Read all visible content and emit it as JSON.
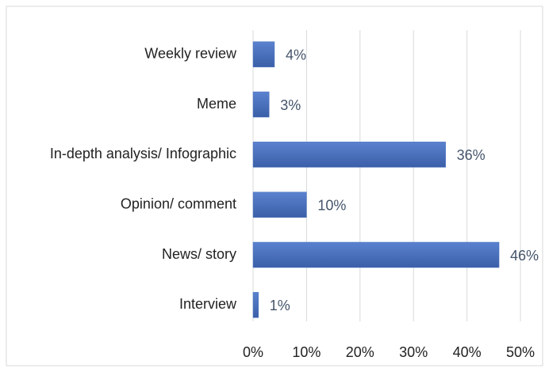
{
  "chart_data": {
    "type": "bar",
    "orientation": "horizontal",
    "categories": [
      "Weekly review",
      "Meme",
      "In-depth analysis/ Infographic",
      "Opinion/ comment",
      "News/ story",
      "Interview"
    ],
    "values": [
      4,
      3,
      36,
      10,
      46,
      1
    ],
    "value_labels": [
      "4%",
      "3%",
      "36%",
      "10%",
      "46%",
      "1%"
    ],
    "color": "#4a70bf",
    "xlim": [
      0,
      50
    ],
    "xticks": [
      {
        "value": 0,
        "label": "0%"
      },
      {
        "value": 10,
        "label": "10%"
      },
      {
        "value": 20,
        "label": "20%"
      },
      {
        "value": 30,
        "label": "30%"
      },
      {
        "value": 40,
        "label": "40%"
      },
      {
        "value": 50,
        "label": "50%"
      }
    ],
    "grid": true
  }
}
